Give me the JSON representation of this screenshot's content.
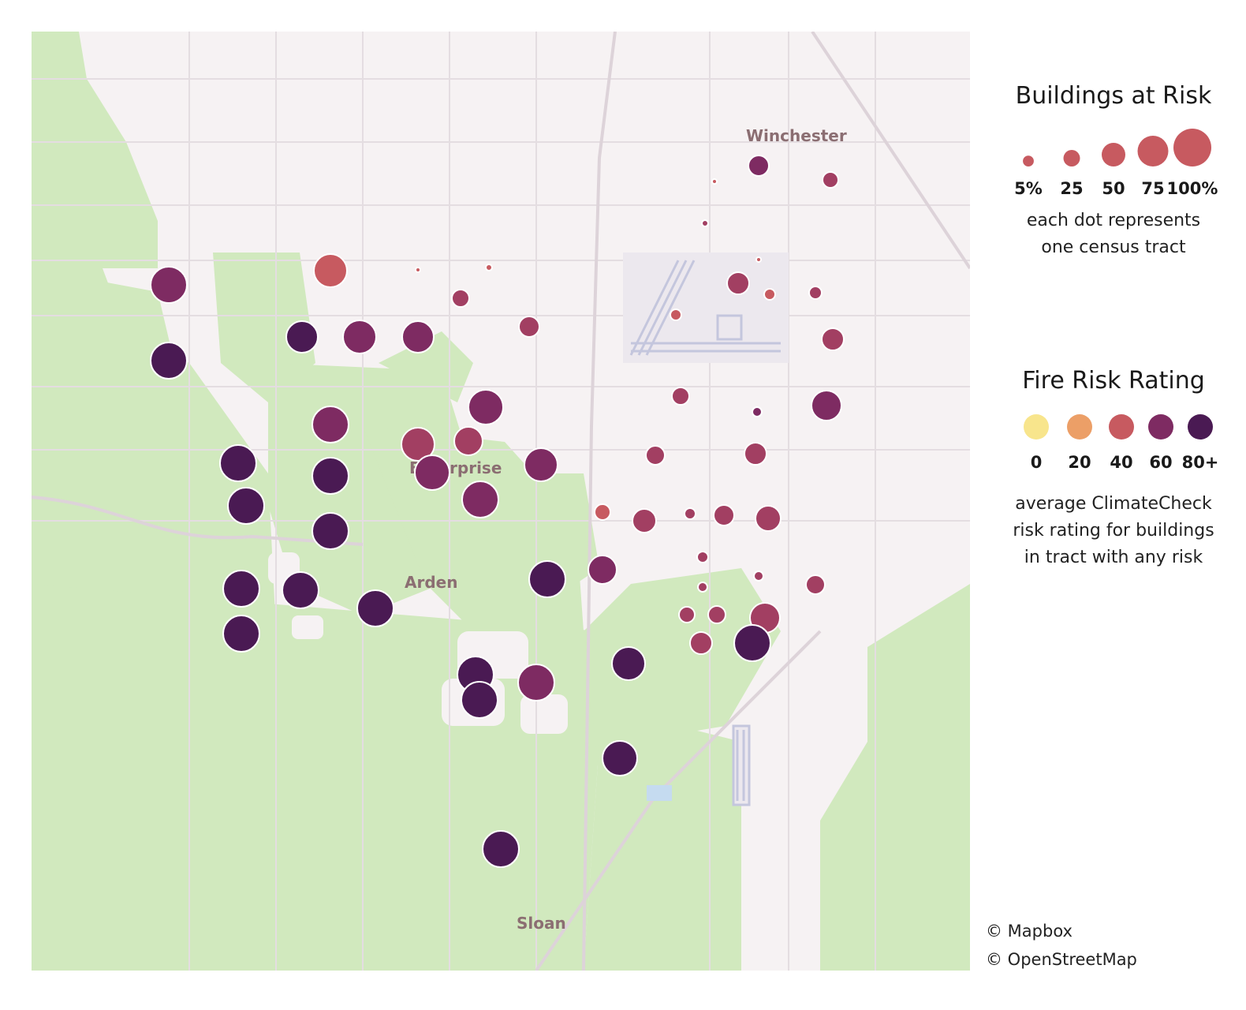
{
  "legend_size": {
    "title": "Buildings at Risk",
    "items": [
      {
        "label": "5%",
        "value": 5
      },
      {
        "label": "25",
        "value": 25
      },
      {
        "label": "50",
        "value": 50
      },
      {
        "label": "75",
        "value": 75
      },
      {
        "label": "100%",
        "value": 100
      }
    ],
    "note_line1": "each dot represents",
    "note_line2": "one census tract"
  },
  "legend_color": {
    "title": "Fire Risk Rating",
    "items": [
      {
        "label": "0",
        "color": "#f8e58c"
      },
      {
        "label": "20",
        "color": "#ec9f67"
      },
      {
        "label": "40",
        "color": "#c75a60"
      },
      {
        "label": "60",
        "color": "#7e2b62"
      },
      {
        "label": "80+",
        "color": "#4a1a53"
      }
    ],
    "note_line1": "average ClimateCheck",
    "note_line2": "risk rating for buildings",
    "note_line3": "in tract with any risk"
  },
  "place_labels": {
    "winchester": "Winchester",
    "enterprise": "Enterprise",
    "arden": "Arden",
    "sloan": "Sloan"
  },
  "attribution": {
    "mapbox": "© Mapbox",
    "osm": "© OpenStreetMap"
  }
}
